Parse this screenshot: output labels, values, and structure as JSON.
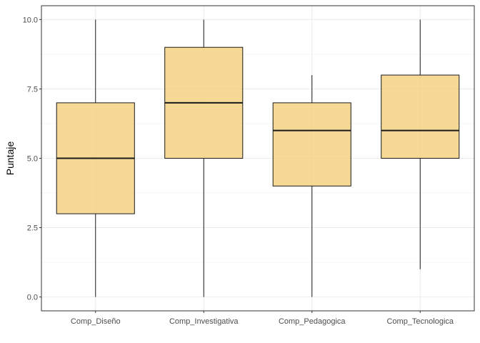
{
  "chart_data": {
    "type": "boxplot",
    "title": "",
    "xlabel": "",
    "ylabel": "Puntaje",
    "ylim": [
      -0.5,
      10.5
    ],
    "yticks": [
      0.0,
      2.5,
      5.0,
      7.5,
      10.0
    ],
    "ytick_labels": [
      "0.0",
      "2.5",
      "5.0",
      "7.5",
      "10.0"
    ],
    "grid": true,
    "legend": "none",
    "fill_color": "#f2cc72",
    "fill_opacity": 0.75,
    "stroke_color": "#1a1a1a",
    "categories": [
      "Comp_Diseño",
      "Comp_Investigativa",
      "Comp_Pedagogica",
      "Comp_Tecnologica"
    ],
    "boxes": [
      {
        "category": "Comp_Diseño",
        "min": 0,
        "q1": 3,
        "median": 5,
        "q3": 7,
        "max": 10
      },
      {
        "category": "Comp_Investigativa",
        "min": 0,
        "q1": 5,
        "median": 7,
        "q3": 9,
        "max": 10
      },
      {
        "category": "Comp_Pedagogica",
        "min": 0,
        "q1": 4,
        "median": 6,
        "q3": 7,
        "max": 8
      },
      {
        "category": "Comp_Tecnologica",
        "min": 1,
        "q1": 5,
        "median": 6,
        "q3": 8,
        "max": 10
      }
    ]
  }
}
